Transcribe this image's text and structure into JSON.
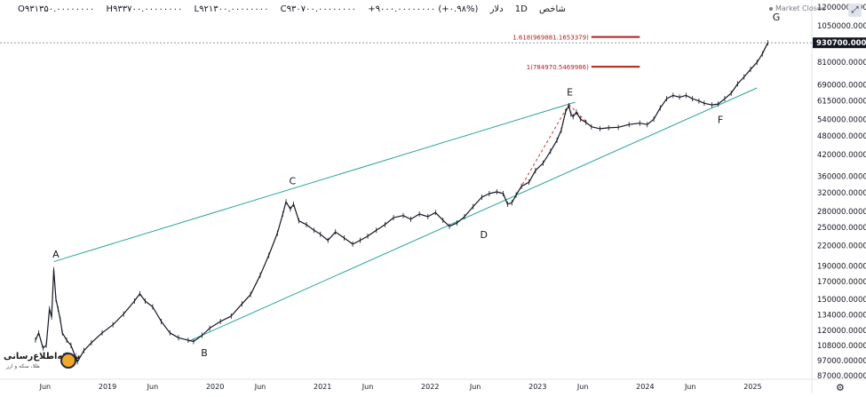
{
  "header": {
    "symbol": "شاخص",
    "interval": "1D",
    "currency": "دلار",
    "open": "O۹۳۱۳۵۰.۰۰۰۰۰۰۰۰",
    "high": "H۹۳۳۷۰۰.۰۰۰۰۰۰۰۰",
    "low": "L۹۲۱۳۰۰.۰۰۰۰۰۰۰۰",
    "close": "C۹۳۰۷۰۰.۰۰۰۰۰۰۰۰",
    "change": "+۹۰۰۰.۰۰۰۰۰۰۰۰ (+۰.۹۸%)",
    "market_status": "Market Closed"
  },
  "logo": {
    "name": "شبکه‌اطلاع‌رسانی",
    "sub": "طلا، سکه و ارز"
  },
  "chart_data": {
    "type": "line",
    "price_scale": {
      "ticks": [
        1200000,
        1050000,
        930700,
        810000,
        690000,
        615000,
        540000,
        480000,
        420000,
        360000,
        320000,
        280000,
        250000,
        220000,
        190000,
        170000,
        150000,
        134000,
        120000,
        108000,
        97000,
        87000
      ],
      "tick_labels": [
        "1200000.00000000",
        "1050000.00000000",
        "930700.00000000",
        "810000.00000000",
        "690000.00000000",
        "615000.00000000",
        "540000.00000000",
        "480000.00000000",
        "420000.00000000",
        "360000.00000000",
        "320000.00000000",
        "280000.00000000",
        "250000.00000000",
        "220000.00000000",
        "190000.00000000",
        "170000.00000000",
        "150000.00000000",
        "134000.00000000",
        "120000.00000000",
        "108000.00000000",
        "97000.00000000",
        "87000.00000000"
      ],
      "last_price": 930700,
      "last_price_label": "930700.00000000"
    },
    "time_scale": {
      "ticks": [
        2018.42,
        2019.0,
        2019.42,
        2020.0,
        2020.42,
        2021.0,
        2021.42,
        2022.0,
        2022.42,
        2023.0,
        2023.42,
        2024.0,
        2024.42,
        2025.0
      ],
      "tick_labels": [
        "Jun",
        "2019",
        "Jun",
        "2020",
        "Jun",
        "2021",
        "Jun",
        "2022",
        "Jun",
        "2023",
        "Jun",
        "2024",
        "Jun",
        "2025"
      ],
      "range": [
        2018.0,
        2025.55
      ]
    },
    "price_path": [
      [
        2018.33,
        112000
      ],
      [
        2018.36,
        118000
      ],
      [
        2018.4,
        106000
      ],
      [
        2018.43,
        108000
      ],
      [
        2018.46,
        140000
      ],
      [
        2018.48,
        132000
      ],
      [
        2018.5,
        185000
      ],
      [
        2018.52,
        150000
      ],
      [
        2018.54,
        140000
      ],
      [
        2018.56,
        130000
      ],
      [
        2018.58,
        118000
      ],
      [
        2018.62,
        112000
      ],
      [
        2018.66,
        108000
      ],
      [
        2018.72,
        96000
      ],
      [
        2018.78,
        104000
      ],
      [
        2018.85,
        110000
      ],
      [
        2018.95,
        118000
      ],
      [
        2019.05,
        125000
      ],
      [
        2019.15,
        135000
      ],
      [
        2019.25,
        148000
      ],
      [
        2019.3,
        156000
      ],
      [
        2019.35,
        148000
      ],
      [
        2019.42,
        142000
      ],
      [
        2019.5,
        128000
      ],
      [
        2019.58,
        118000
      ],
      [
        2019.66,
        114000
      ],
      [
        2019.75,
        112000
      ],
      [
        2019.8,
        111000
      ],
      [
        2019.88,
        116000
      ],
      [
        2019.95,
        122000
      ],
      [
        2020.05,
        128000
      ],
      [
        2020.15,
        133000
      ],
      [
        2020.25,
        145000
      ],
      [
        2020.33,
        155000
      ],
      [
        2020.42,
        178000
      ],
      [
        2020.5,
        205000
      ],
      [
        2020.58,
        240000
      ],
      [
        2020.63,
        275000
      ],
      [
        2020.66,
        300000
      ],
      [
        2020.7,
        285000
      ],
      [
        2020.73,
        295000
      ],
      [
        2020.78,
        262000
      ],
      [
        2020.85,
        255000
      ],
      [
        2020.92,
        245000
      ],
      [
        2020.98,
        238000
      ],
      [
        2021.05,
        228000
      ],
      [
        2021.12,
        242000
      ],
      [
        2021.2,
        232000
      ],
      [
        2021.28,
        222000
      ],
      [
        2021.35,
        228000
      ],
      [
        2021.42,
        235000
      ],
      [
        2021.5,
        245000
      ],
      [
        2021.58,
        255000
      ],
      [
        2021.66,
        268000
      ],
      [
        2021.75,
        272000
      ],
      [
        2021.82,
        265000
      ],
      [
        2021.9,
        275000
      ],
      [
        2021.98,
        270000
      ],
      [
        2022.05,
        278000
      ],
      [
        2022.12,
        263000
      ],
      [
        2022.18,
        252000
      ],
      [
        2022.25,
        258000
      ],
      [
        2022.32,
        270000
      ],
      [
        2022.4,
        290000
      ],
      [
        2022.48,
        310000
      ],
      [
        2022.55,
        318000
      ],
      [
        2022.62,
        322000
      ],
      [
        2022.68,
        318000
      ],
      [
        2022.72,
        295000
      ],
      [
        2022.76,
        298000
      ],
      [
        2022.8,
        315000
      ],
      [
        2022.85,
        335000
      ],
      [
        2022.92,
        345000
      ],
      [
        2022.98,
        375000
      ],
      [
        2023.05,
        395000
      ],
      [
        2023.12,
        430000
      ],
      [
        2023.18,
        465000
      ],
      [
        2023.22,
        500000
      ],
      [
        2023.26,
        570000
      ],
      [
        2023.29,
        595000
      ],
      [
        2023.31,
        560000
      ],
      [
        2023.33,
        550000
      ],
      [
        2023.36,
        568000
      ],
      [
        2023.4,
        540000
      ],
      [
        2023.45,
        528000
      ],
      [
        2023.5,
        512000
      ],
      [
        2023.58,
        505000
      ],
      [
        2023.66,
        508000
      ],
      [
        2023.75,
        510000
      ],
      [
        2023.85,
        520000
      ],
      [
        2023.95,
        525000
      ],
      [
        2024.02,
        520000
      ],
      [
        2024.08,
        540000
      ],
      [
        2024.14,
        585000
      ],
      [
        2024.2,
        625000
      ],
      [
        2024.26,
        640000
      ],
      [
        2024.32,
        632000
      ],
      [
        2024.38,
        640000
      ],
      [
        2024.44,
        625000
      ],
      [
        2024.5,
        615000
      ],
      [
        2024.55,
        605000
      ],
      [
        2024.62,
        598000
      ],
      [
        2024.68,
        602000
      ],
      [
        2024.74,
        625000
      ],
      [
        2024.8,
        650000
      ],
      [
        2024.86,
        695000
      ],
      [
        2024.92,
        730000
      ],
      [
        2024.98,
        770000
      ],
      [
        2025.04,
        810000
      ],
      [
        2025.09,
        860000
      ],
      [
        2025.14,
        930700
      ]
    ],
    "annotations": [
      {
        "label": "A",
        "x": 2018.52,
        "y": 202000
      },
      {
        "label": "B",
        "x": 2019.9,
        "y": 100000
      },
      {
        "label": "C",
        "x": 2020.72,
        "y": 340000
      },
      {
        "label": "D",
        "x": 2022.5,
        "y": 232000
      },
      {
        "label": "E",
        "x": 2023.3,
        "y": 640000
      },
      {
        "label": "F",
        "x": 2024.7,
        "y": 525000
      },
      {
        "label": "G",
        "x": 2025.22,
        "y": 1090000
      }
    ],
    "trendlines": [
      {
        "name": "upper",
        "from": [
          2018.5,
          196000
        ],
        "to": [
          2023.35,
          610000
        ],
        "color": "#26a69a"
      },
      {
        "name": "lower",
        "from": [
          2019.75,
          111000
        ],
        "to": [
          2025.04,
          675000
        ],
        "color": "#26a69a"
      },
      {
        "name": "fib-leg",
        "from": [
          2022.76,
          298000
        ],
        "to": [
          2023.29,
          600000
        ],
        "color": "#d32f2f",
        "dashed": true
      },
      {
        "name": "fib-leg2",
        "from": [
          2023.29,
          600000
        ],
        "to": [
          2023.45,
          532000
        ],
        "color": "#d32f2f",
        "dashed": true
      }
    ],
    "fib_levels": [
      {
        "label": "1.618(969881.1653379)",
        "value": 969881,
        "x_from": 2023.5,
        "x_to": 2023.95,
        "color": "#b71c1c"
      },
      {
        "label": "1(784970.5469986)",
        "value": 784970,
        "x_from": 2023.5,
        "x_to": 2023.95,
        "color": "#b71c1c"
      }
    ],
    "colors": {
      "price": "#131722",
      "trend": "#26a69a",
      "fib": "#b71c1c",
      "axis_text": "#131722",
      "last_price_bg": "#131722"
    }
  }
}
